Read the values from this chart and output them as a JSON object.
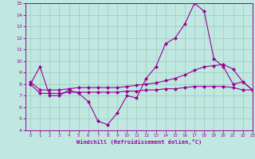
{
  "xlabel": "Windchill (Refroidissement éolien,°C)",
  "bg_color": "#c0e8e0",
  "line_color": "#990099",
  "grid_color": "#99ccbb",
  "xlim": [
    -0.5,
    23
  ],
  "ylim": [
    4,
    15
  ],
  "xticks": [
    0,
    1,
    2,
    3,
    4,
    5,
    6,
    7,
    8,
    9,
    10,
    11,
    12,
    13,
    14,
    15,
    16,
    17,
    18,
    19,
    20,
    21,
    22,
    23
  ],
  "yticks": [
    4,
    5,
    6,
    7,
    8,
    9,
    10,
    11,
    12,
    13,
    14,
    15
  ],
  "series1_x": [
    0,
    1,
    2,
    3,
    4,
    5,
    6,
    7,
    8,
    9,
    10,
    11,
    12,
    13,
    14,
    15,
    16,
    17,
    18,
    19,
    20,
    21,
    22,
    23
  ],
  "series1_y": [
    8.0,
    9.5,
    7.0,
    7.0,
    7.5,
    7.2,
    6.5,
    4.8,
    4.5,
    5.5,
    7.0,
    6.8,
    8.5,
    9.5,
    11.5,
    12.0,
    13.2,
    15.0,
    14.3,
    10.2,
    9.5,
    8.0,
    8.2,
    7.5
  ],
  "series2_x": [
    0,
    1,
    2,
    3,
    4,
    5,
    6,
    7,
    8,
    9,
    10,
    11,
    12,
    13,
    14,
    15,
    16,
    17,
    18,
    19,
    20,
    21,
    22,
    23
  ],
  "series2_y": [
    8.2,
    7.5,
    7.5,
    7.5,
    7.6,
    7.7,
    7.7,
    7.7,
    7.7,
    7.7,
    7.8,
    7.9,
    8.0,
    8.1,
    8.3,
    8.5,
    8.8,
    9.2,
    9.5,
    9.6,
    9.7,
    9.3,
    8.2,
    7.5
  ],
  "series3_x": [
    0,
    1,
    2,
    3,
    4,
    5,
    6,
    7,
    8,
    9,
    10,
    11,
    12,
    13,
    14,
    15,
    16,
    17,
    18,
    19,
    20,
    21,
    22,
    23
  ],
  "series3_y": [
    8.0,
    7.2,
    7.2,
    7.2,
    7.3,
    7.3,
    7.3,
    7.3,
    7.3,
    7.3,
    7.4,
    7.4,
    7.5,
    7.5,
    7.6,
    7.6,
    7.7,
    7.8,
    7.8,
    7.8,
    7.8,
    7.7,
    7.5,
    7.5
  ],
  "marker": "D",
  "markersize": 2,
  "linewidth": 0.8
}
